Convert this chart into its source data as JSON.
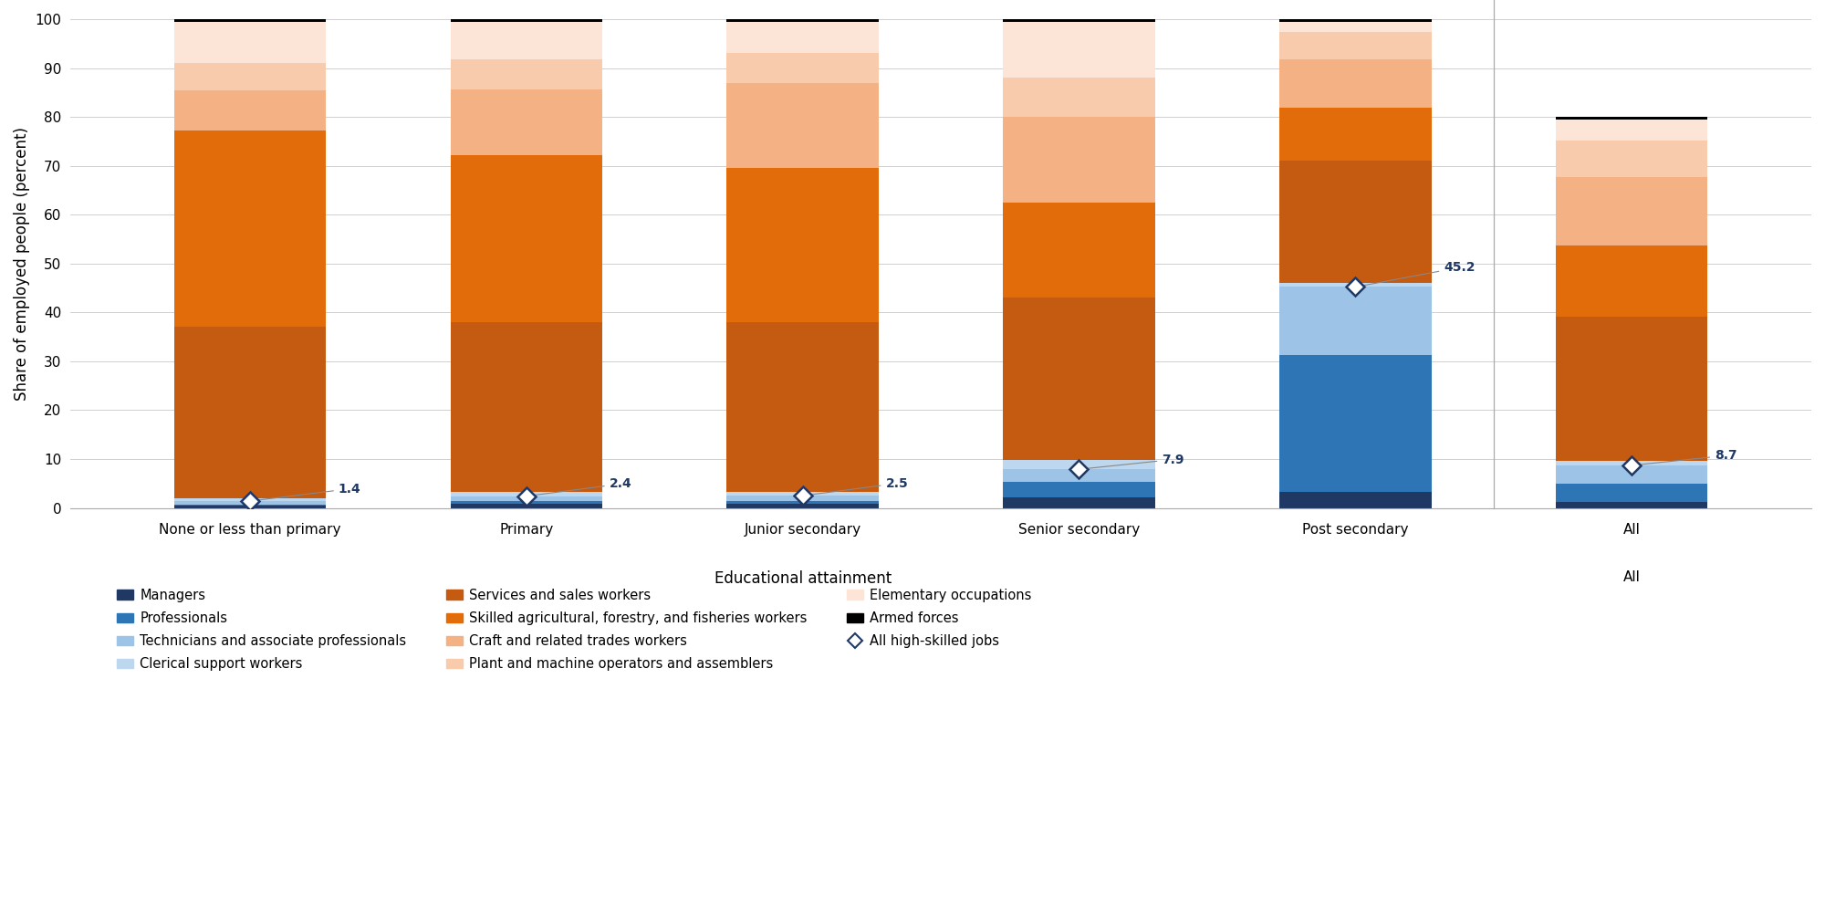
{
  "categories": [
    "None or less than primary",
    "Primary",
    "Junior secondary",
    "Senior secondary",
    "Post secondary",
    "All"
  ],
  "xlabel": "Educational attainment",
  "ylabel": "Share of employed people (percent)",
  "ylim": [
    0,
    100
  ],
  "yticks": [
    0,
    10,
    20,
    30,
    40,
    50,
    60,
    70,
    80,
    90,
    100
  ],
  "segments": [
    {
      "label": "Managers",
      "color": "#1F3864",
      "values": [
        0.4,
        0.8,
        0.8,
        2.2,
        3.2,
        1.3
      ]
    },
    {
      "label": "Professionals",
      "color": "#2E75B6",
      "values": [
        0.3,
        0.6,
        0.7,
        3.2,
        28.0,
        3.7
      ]
    },
    {
      "label": "Technicians and associate professionals",
      "color": "#9DC3E6",
      "values": [
        0.7,
        1.0,
        1.0,
        2.5,
        14.0,
        3.7
      ]
    },
    {
      "label": "Clerical support workers",
      "color": "#BDD7EE",
      "values": [
        0.5,
        0.8,
        0.8,
        2.0,
        0.8,
        1.0
      ]
    },
    {
      "label": "Services and sales workers",
      "color": "#C55A11",
      "values": [
        35.1,
        34.8,
        34.7,
        33.1,
        25.0,
        29.5
      ]
    },
    {
      "label": "Skilled agricultural, forestry, and fisheries workers",
      "color": "#E36C0A",
      "values": [
        40.3,
        34.2,
        31.5,
        19.5,
        10.8,
        14.5
      ]
    },
    {
      "label": "Craft and related trades workers",
      "color": "#F4B183",
      "values": [
        8.2,
        13.5,
        17.5,
        17.5,
        10.0,
        14.0
      ]
    },
    {
      "label": "Plant and machine operators and assemblers",
      "color": "#F8CBAD",
      "values": [
        5.5,
        6.0,
        6.0,
        8.0,
        5.5,
        7.5
      ]
    },
    {
      "label": "Elementary occupations",
      "color": "#FCE4D6",
      "values": [
        8.5,
        7.8,
        6.5,
        11.5,
        2.2,
        4.3
      ]
    },
    {
      "label": "Armed forces",
      "color": "#000000",
      "values": [
        0.5,
        0.5,
        0.5,
        0.5,
        0.5,
        0.5
      ]
    }
  ],
  "diamond_values": [
    1.4,
    2.4,
    2.5,
    7.9,
    45.2,
    8.7
  ],
  "diamond_color": "#1F3864",
  "background_color": "#FFFFFF",
  "bar_width": 0.55,
  "figsize": [
    20.0,
    9.84
  ],
  "dpi": 100,
  "axis_fontsize": 12,
  "legend_fontsize": 10.5,
  "tick_fontsize": 11,
  "annot_fontsize": 10,
  "legend_order": [
    "Managers",
    "Professionals",
    "Technicians and associate professionals",
    "Clerical support workers",
    "Services and sales workers",
    "Skilled agricultural, forestry, and fisheries workers",
    "Craft and related trades workers",
    "Plant and machine operators and assemblers",
    "Elementary occupations",
    "Armed forces",
    "All high-skilled jobs"
  ]
}
